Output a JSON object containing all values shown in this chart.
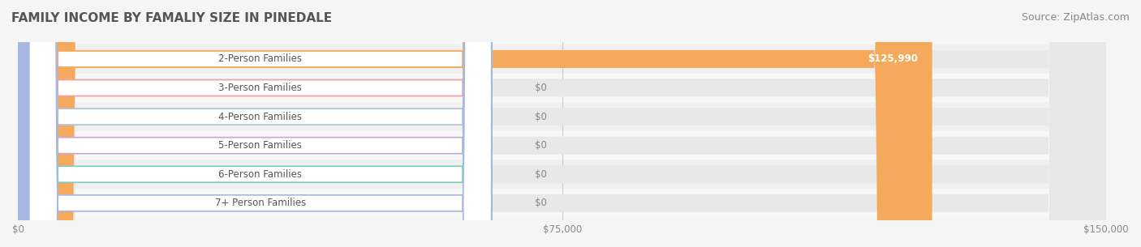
{
  "title": "FAMILY INCOME BY FAMALIY SIZE IN PINEDALE",
  "source": "Source: ZipAtlas.com",
  "categories": [
    "2-Person Families",
    "3-Person Families",
    "4-Person Families",
    "5-Person Families",
    "6-Person Families",
    "7+ Person Families"
  ],
  "values": [
    125990,
    0,
    0,
    0,
    0,
    0
  ],
  "bar_colors": [
    "#F5A95C",
    "#F4A0A0",
    "#A8C4E0",
    "#C9A8D4",
    "#7ECEC4",
    "#A8B8E0"
  ],
  "label_bg_colors": [
    "#F5A95C",
    "#F4A0A0",
    "#A8C4E0",
    "#C9A8D4",
    "#7ECEC4",
    "#A8B8E0"
  ],
  "value_labels": [
    "$125,990",
    "$0",
    "$0",
    "$0",
    "$0",
    "$0"
  ],
  "xlim": [
    0,
    150000
  ],
  "xticks": [
    0,
    75000,
    150000
  ],
  "xticklabels": [
    "$0",
    "$75,000",
    "$150,000"
  ],
  "bg_color": "#f5f5f5",
  "bar_bg_color": "#e8e8e8",
  "title_color": "#555555",
  "source_color": "#888888",
  "label_text_color": "#555555",
  "value_text_color_on_bar": "#ffffff",
  "value_text_color_off_bar": "#888888",
  "title_fontsize": 11,
  "source_fontsize": 9,
  "label_fontsize": 8.5,
  "value_fontsize": 8.5,
  "bar_height": 0.62,
  "row_bg_colors": [
    "#f0f0f0",
    "#f8f8f8"
  ]
}
